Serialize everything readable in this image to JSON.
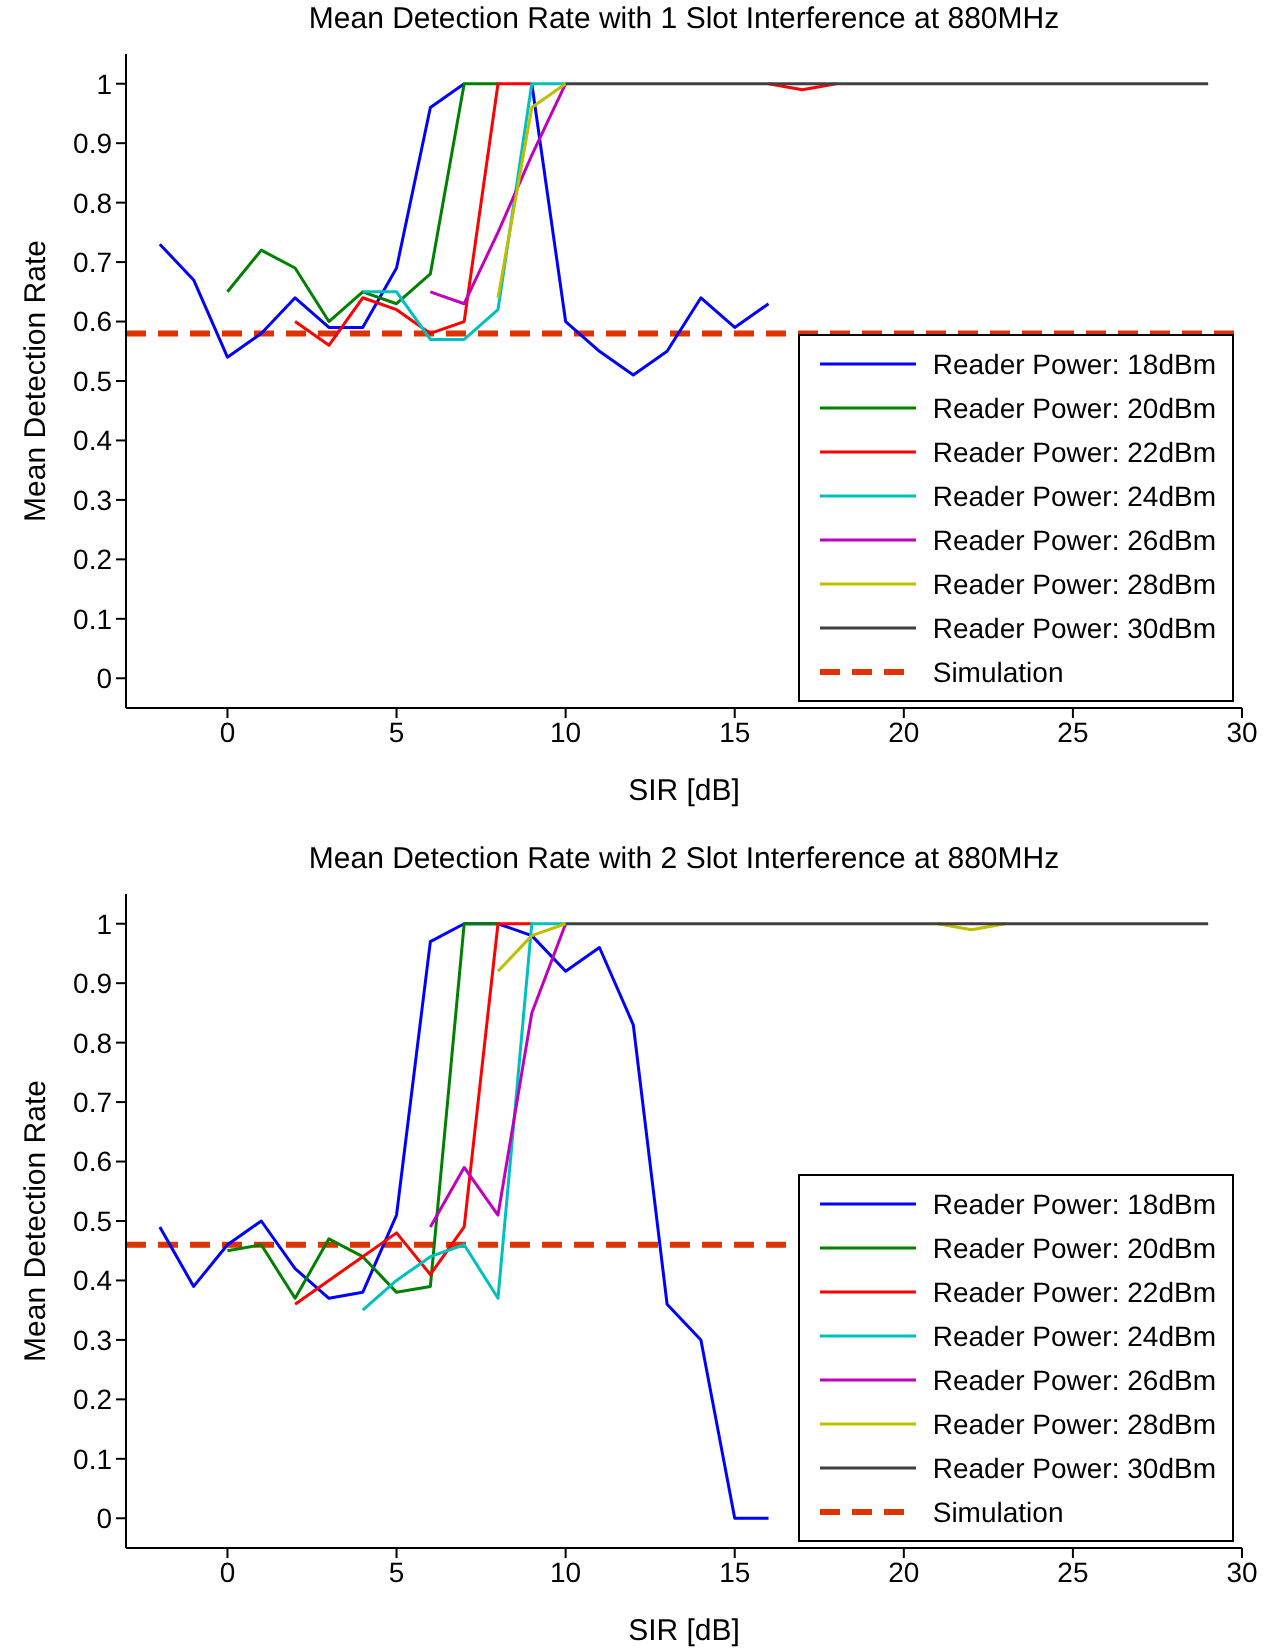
{
  "chart_data": [
    {
      "type": "line",
      "title": "Mean Detection Rate with 1 Slot Interference at 880MHz",
      "xlabel": "SIR [dB]",
      "ylabel": "Mean Detection Rate",
      "x": [
        -2,
        -1,
        0,
        1,
        2,
        3,
        4,
        5,
        6,
        7,
        8,
        9,
        10,
        11,
        12,
        13,
        14,
        15,
        16,
        17,
        18,
        19,
        20,
        21,
        22,
        23,
        24,
        25,
        26,
        27,
        28,
        29
      ],
      "series": [
        {
          "name": "Reader Power: 18dBm",
          "color": "#0000ff",
          "values": [
            0.73,
            0.67,
            0.54,
            0.58,
            0.64,
            0.59,
            0.59,
            0.69,
            0.96,
            1,
            null,
            1,
            0.6,
            0.55,
            0.51,
            0.55,
            0.64,
            0.59,
            0.63,
            null,
            null,
            null,
            null,
            null,
            null,
            null,
            null,
            null,
            null,
            null,
            null,
            null
          ]
        },
        {
          "name": "Reader Power: 20dBm",
          "color": "#008000",
          "values": [
            null,
            null,
            0.65,
            0.72,
            0.69,
            0.6,
            0.65,
            0.63,
            0.68,
            1,
            1,
            null,
            null,
            null,
            null,
            null,
            null,
            null,
            null,
            null,
            null,
            null,
            null,
            null,
            null,
            null,
            null,
            null,
            null,
            null,
            null,
            null
          ]
        },
        {
          "name": "Reader Power: 22dBm",
          "color": "#ff0000",
          "values": [
            null,
            null,
            null,
            null,
            0.6,
            0.56,
            0.64,
            0.62,
            0.58,
            0.6,
            1,
            1,
            null,
            null,
            null,
            null,
            null,
            null,
            1,
            0.99,
            1,
            null,
            null,
            null,
            null,
            null,
            null,
            null,
            null,
            null,
            null,
            null
          ]
        },
        {
          "name": "Reader Power: 24dBm",
          "color": "#00bfbf",
          "values": [
            null,
            null,
            null,
            null,
            null,
            null,
            0.65,
            0.65,
            0.57,
            0.57,
            0.62,
            1,
            1,
            null,
            null,
            null,
            null,
            null,
            null,
            null,
            null,
            null,
            null,
            null,
            null,
            null,
            null,
            null,
            null,
            null,
            null,
            null
          ]
        },
        {
          "name": "Reader Power: 26dBm",
          "color": "#bf00bf",
          "values": [
            null,
            null,
            null,
            null,
            null,
            null,
            null,
            null,
            0.65,
            0.63,
            0.75,
            0.88,
            1,
            null,
            null,
            null,
            null,
            null,
            null,
            null,
            null,
            null,
            null,
            null,
            null,
            null,
            null,
            null,
            null,
            null,
            null,
            null
          ]
        },
        {
          "name": "Reader Power: 28dBm",
          "color": "#bfbf00",
          "values": [
            null,
            null,
            null,
            null,
            null,
            null,
            null,
            null,
            null,
            null,
            0.64,
            0.96,
            1,
            null,
            null,
            null,
            null,
            null,
            null,
            null,
            null,
            null,
            null,
            null,
            null,
            null,
            null,
            null,
            null,
            null,
            null,
            null
          ]
        },
        {
          "name": "Reader Power: 30dBm",
          "color": "#404040",
          "values": [
            null,
            null,
            null,
            null,
            null,
            null,
            null,
            null,
            null,
            null,
            null,
            null,
            1,
            1,
            1,
            1,
            1,
            1,
            1,
            1,
            1,
            1,
            1,
            1,
            1,
            1,
            1,
            1,
            1,
            1,
            1,
            1
          ]
        }
      ],
      "ref_lines": [
        {
          "axis": "y",
          "value": 0.58,
          "label": "Simulation",
          "color": "#dd3300",
          "line_style": "dashed"
        }
      ],
      "xlim": [
        -3,
        30
      ],
      "xticks": [
        0,
        5,
        10,
        15,
        20,
        25,
        30
      ],
      "ylim": [
        -0.05,
        1.05
      ],
      "yticks": [
        0,
        0.1,
        0.2,
        0.3,
        0.4,
        0.5,
        0.6,
        0.7,
        0.8,
        0.9,
        1
      ],
      "legend": "bottom right",
      "line_style": "solid"
    },
    {
      "type": "line",
      "title": "Mean Detection Rate with 2 Slot Interference at 880MHz",
      "xlabel": "SIR [dB]",
      "ylabel": "Mean Detection Rate",
      "x": [
        -2,
        -1,
        0,
        1,
        2,
        3,
        4,
        5,
        6,
        7,
        8,
        9,
        10,
        11,
        12,
        13,
        14,
        15,
        16,
        17,
        18,
        19,
        20,
        21,
        22,
        23,
        24,
        25,
        26,
        27,
        28,
        29
      ],
      "series": [
        {
          "name": "Reader Power: 18dBm",
          "color": "#0000ff",
          "values": [
            0.49,
            0.39,
            0.46,
            0.5,
            0.42,
            0.37,
            0.38,
            0.51,
            0.97,
            1,
            1,
            0.98,
            0.92,
            0.96,
            0.83,
            0.36,
            0.3,
            0,
            0,
            null,
            null,
            null,
            null,
            null,
            null,
            null,
            null,
            null,
            null,
            null,
            null,
            null
          ]
        },
        {
          "name": "Reader Power: 20dBm",
          "color": "#008000",
          "values": [
            null,
            null,
            0.45,
            0.46,
            0.37,
            0.47,
            0.44,
            0.38,
            0.39,
            1,
            1,
            null,
            null,
            null,
            null,
            null,
            null,
            null,
            null,
            null,
            null,
            null,
            null,
            null,
            null,
            null,
            null,
            null,
            null,
            null,
            null,
            null
          ]
        },
        {
          "name": "Reader Power: 22dBm",
          "color": "#ff0000",
          "values": [
            null,
            null,
            null,
            null,
            0.36,
            0.4,
            0.44,
            0.48,
            0.41,
            0.49,
            1,
            1,
            null,
            null,
            null,
            null,
            null,
            null,
            null,
            null,
            null,
            null,
            null,
            null,
            null,
            null,
            null,
            null,
            null,
            null,
            null,
            null
          ]
        },
        {
          "name": "Reader Power: 24dBm",
          "color": "#00bfbf",
          "values": [
            null,
            null,
            null,
            null,
            null,
            null,
            0.35,
            0.4,
            0.44,
            0.46,
            0.37,
            1,
            1,
            null,
            null,
            null,
            null,
            null,
            null,
            null,
            null,
            null,
            null,
            null,
            null,
            null,
            null,
            null,
            null,
            null,
            null,
            null
          ]
        },
        {
          "name": "Reader Power: 26dBm",
          "color": "#bf00bf",
          "values": [
            null,
            null,
            null,
            null,
            null,
            null,
            null,
            null,
            0.49,
            0.59,
            0.51,
            0.85,
            1,
            null,
            null,
            null,
            null,
            null,
            null,
            null,
            null,
            null,
            null,
            null,
            null,
            null,
            null,
            null,
            null,
            null,
            null,
            null
          ]
        },
        {
          "name": "Reader Power: 28dBm",
          "color": "#bfbf00",
          "values": [
            null,
            null,
            null,
            null,
            null,
            null,
            null,
            null,
            null,
            null,
            0.92,
            0.98,
            1,
            null,
            null,
            null,
            null,
            null,
            null,
            null,
            null,
            null,
            null,
            1,
            0.99,
            1,
            null,
            null,
            null,
            null,
            null,
            null
          ]
        },
        {
          "name": "Reader Power: 30dBm",
          "color": "#404040",
          "values": [
            null,
            null,
            null,
            null,
            null,
            null,
            null,
            null,
            null,
            null,
            null,
            null,
            1,
            1,
            1,
            1,
            1,
            1,
            1,
            1,
            1,
            1,
            1,
            1,
            1,
            1,
            1,
            1,
            1,
            1,
            1,
            1
          ]
        }
      ],
      "ref_lines": [
        {
          "axis": "y",
          "value": 0.46,
          "label": "Simulation",
          "color": "#dd3300",
          "line_style": "dashed"
        }
      ],
      "xlim": [
        -3,
        30
      ],
      "xticks": [
        0,
        5,
        10,
        15,
        20,
        25,
        30
      ],
      "ylim": [
        -0.05,
        1.05
      ],
      "yticks": [
        0,
        0.1,
        0.2,
        0.3,
        0.4,
        0.5,
        0.6,
        0.7,
        0.8,
        0.9,
        1
      ],
      "legend": "bottom right",
      "line_style": "solid"
    }
  ]
}
